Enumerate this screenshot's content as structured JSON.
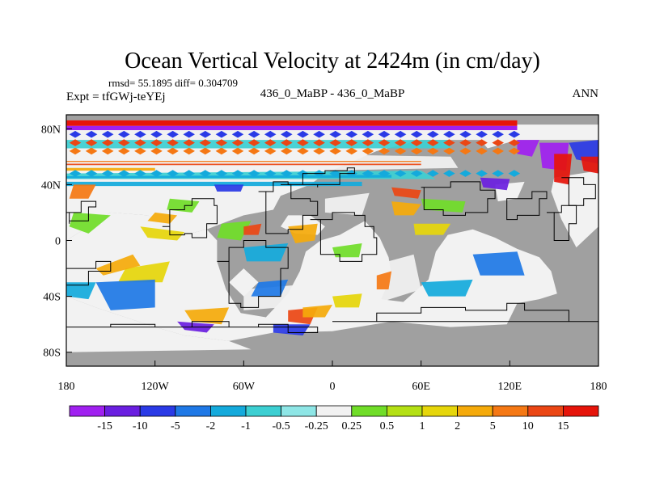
{
  "chart_data": {
    "type": "heatmap",
    "title": "Ocean Vertical Velocity at 2424m (in cm/day)",
    "stats_line": "rmsd= 55.1895 diff= 0.304709",
    "left_subtitle": "Expt = tfGWj-teYEj",
    "center_subtitle": "436_0_MaBP - 436_0_MaBP",
    "right_subtitle": "ANN",
    "x_ticks": [
      "180",
      "120W",
      "60W",
      "0",
      "60E",
      "120E",
      "180"
    ],
    "x_tick_values": [
      -180,
      -120,
      -60,
      0,
      60,
      120,
      180
    ],
    "y_ticks": [
      "80N",
      "40N",
      "0",
      "40S",
      "80S"
    ],
    "y_tick_values": [
      80,
      40,
      0,
      -40,
      -80
    ],
    "xlim": [
      -180,
      180
    ],
    "ylim": [
      -90,
      90
    ],
    "land_color": "#a0a0a0",
    "colorbar": {
      "labels": [
        "-15",
        "-10",
        "-5",
        "-2",
        "-1",
        "-0.5",
        "-0.25",
        "0.25",
        "0.5",
        "1",
        "2",
        "5",
        "10",
        "15"
      ],
      "colors": [
        "#a020f0",
        "#6a1ee0",
        "#2a3ae6",
        "#1e78e6",
        "#14aadc",
        "#3ccfd2",
        "#8ee6e6",
        "#f2f2f2",
        "#70dd28",
        "#b4e014",
        "#e6d60a",
        "#f5aa0a",
        "#f57814",
        "#eb4614",
        "#e6140a"
      ]
    }
  }
}
